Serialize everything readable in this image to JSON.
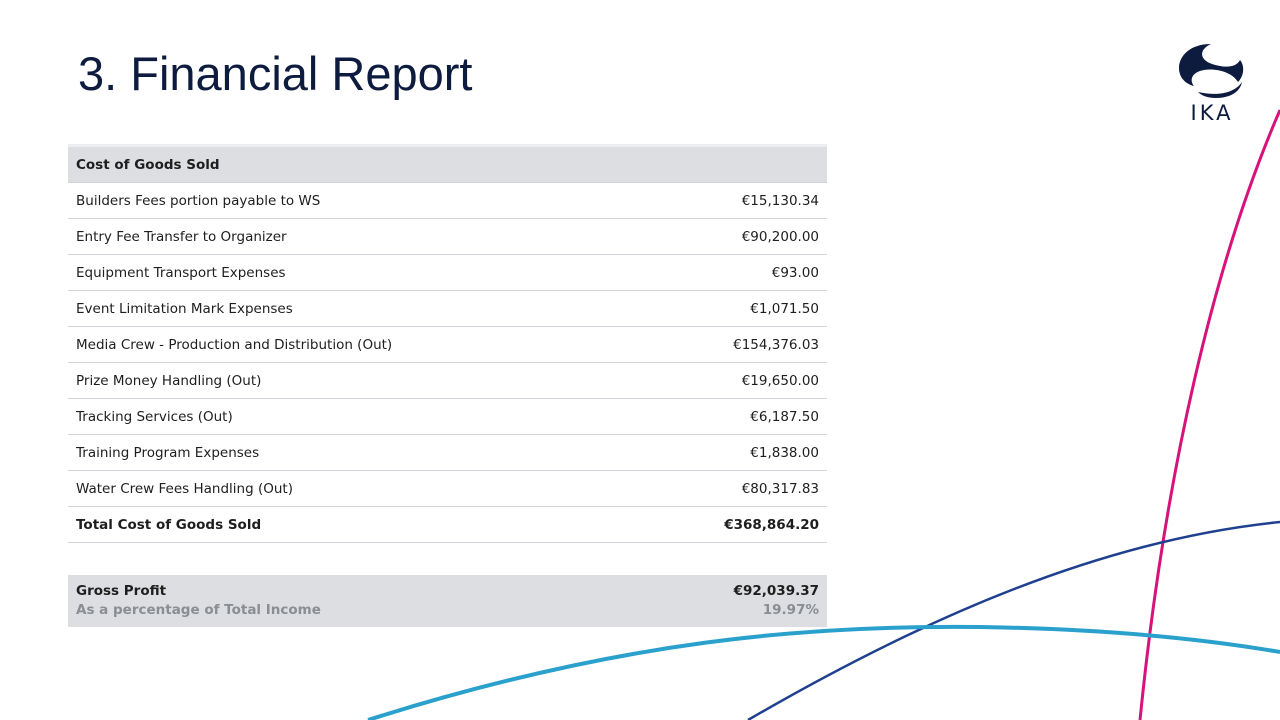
{
  "title": "3. Financial Report",
  "logo": {
    "text": "IKA",
    "color": "#0d1b3e"
  },
  "accent_colors": {
    "magenta": "#d6137a",
    "navy": "#1f3f8f",
    "cyan": "#2aa1cc"
  },
  "cogs": {
    "header": "Cost of Goods Sold",
    "rows": [
      {
        "label": "Builders Fees portion payable to WS",
        "amount": "€15,130.34"
      },
      {
        "label": "Entry Fee Transfer to Organizer",
        "amount": "€90,200.00"
      },
      {
        "label": "Equipment Transport Expenses",
        "amount": "€93.00"
      },
      {
        "label": "Event Limitation Mark Expenses",
        "amount": "€1,071.50"
      },
      {
        "label": "Media Crew - Production and Distribution (Out)",
        "amount": "€154,376.03"
      },
      {
        "label": "Prize Money Handling (Out)",
        "amount": "€19,650.00"
      },
      {
        "label": "Tracking Services (Out)",
        "amount": "€6,187.50"
      },
      {
        "label": "Training Program Expenses",
        "amount": "€1,838.00"
      },
      {
        "label": "Water Crew Fees Handling (Out)",
        "amount": "€80,317.83"
      }
    ],
    "total_label": "Total Cost of Goods Sold",
    "total_amount": "€368,864.20"
  },
  "gross_profit": {
    "label": "Gross Profit",
    "amount": "€92,039.37",
    "pct_label": "As a percentage of Total Income",
    "pct_value": "19.97%"
  }
}
